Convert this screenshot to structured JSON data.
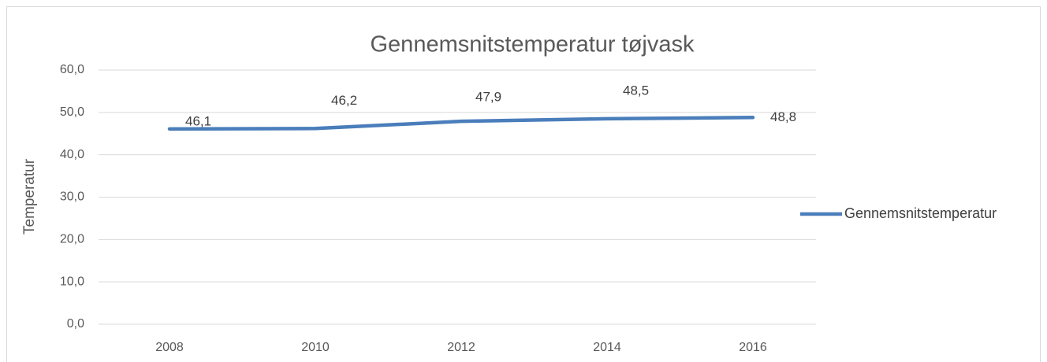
{
  "chart_data": {
    "type": "line",
    "title": "Gennemsnitstemperatur tøjvask",
    "y_label": "Temperatur",
    "categories": [
      "2008",
      "2010",
      "2012",
      "2014",
      "2016"
    ],
    "series": [
      {
        "name": "Gennemsnitstemperatur",
        "color": "#4a7ebb",
        "values": [
          46.1,
          46.2,
          47.9,
          48.5,
          48.8
        ],
        "value_labels": [
          "46,1",
          "46,2",
          "47,9",
          "48,5",
          "48,8"
        ]
      }
    ],
    "ylim": [
      0,
      60
    ],
    "yticks": [
      {
        "value": 0,
        "label": "0,0"
      },
      {
        "value": 10,
        "label": "10,0"
      },
      {
        "value": 20,
        "label": "20,0"
      },
      {
        "value": 30,
        "label": "30,0"
      },
      {
        "value": 40,
        "label": "40,0"
      },
      {
        "value": 50,
        "label": "50,0"
      },
      {
        "value": 60,
        "label": "60,0"
      }
    ],
    "grid": true,
    "legend": "right"
  }
}
